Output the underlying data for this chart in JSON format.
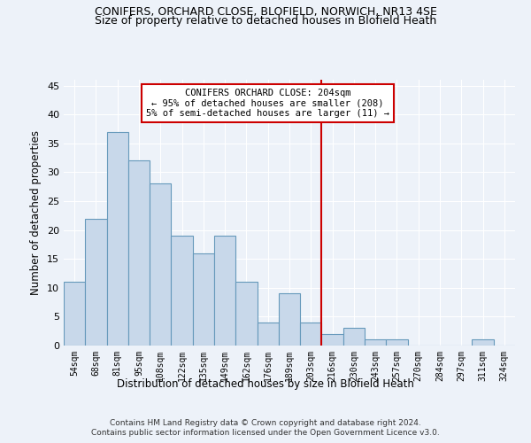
{
  "title": "CONIFERS, ORCHARD CLOSE, BLOFIELD, NORWICH, NR13 4SE",
  "subtitle": "Size of property relative to detached houses in Blofield Heath",
  "xlabel": "Distribution of detached houses by size in Blofield Heath",
  "ylabel": "Number of detached properties",
  "footer_line1": "Contains HM Land Registry data © Crown copyright and database right 2024.",
  "footer_line2": "Contains public sector information licensed under the Open Government Licence v3.0.",
  "categories": [
    "54sqm",
    "68sqm",
    "81sqm",
    "95sqm",
    "108sqm",
    "122sqm",
    "135sqm",
    "149sqm",
    "162sqm",
    "176sqm",
    "189sqm",
    "203sqm",
    "216sqm",
    "230sqm",
    "243sqm",
    "257sqm",
    "270sqm",
    "284sqm",
    "297sqm",
    "311sqm",
    "324sqm"
  ],
  "values": [
    11,
    22,
    37,
    32,
    28,
    19,
    16,
    19,
    11,
    4,
    9,
    4,
    2,
    3,
    1,
    1,
    0,
    0,
    0,
    1,
    0
  ],
  "bar_color": "#c8d8ea",
  "bar_edge_color": "#6699bb",
  "vline_x": 11.5,
  "vline_color": "#cc0000",
  "annotation_text": "CONIFERS ORCHARD CLOSE: 204sqm\n← 95% of detached houses are smaller (208)\n5% of semi-detached houses are larger (11) →",
  "annotation_box_color": "#cc0000",
  "annotation_text_color": "#000000",
  "ylim": [
    0,
    46
  ],
  "yticks": [
    0,
    5,
    10,
    15,
    20,
    25,
    30,
    35,
    40,
    45
  ],
  "background_color": "#edf2f9",
  "plot_background_color": "#edf2f9",
  "grid_color": "#ffffff",
  "title_fontsize": 9,
  "subtitle_fontsize": 9,
  "xlabel_fontsize": 8.5,
  "ylabel_fontsize": 8.5,
  "annotation_fontsize": 7.5
}
